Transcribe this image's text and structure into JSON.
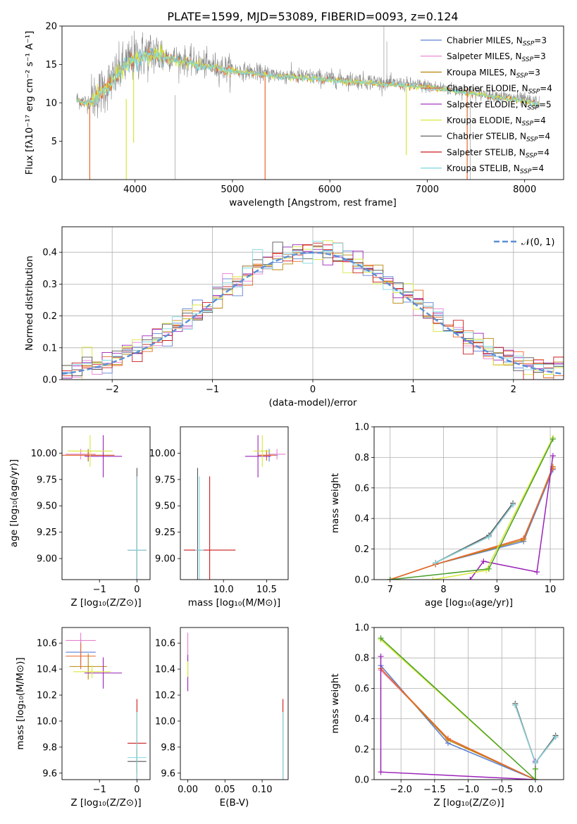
{
  "title": "PLATE=1599, MJD=53089, FIBERID=0093, z=0.124",
  "colors": {
    "Chabrier MILES": "#5b7fd6",
    "Salpeter MILES": "#e87fcf",
    "Kroupa MILES": "#b8860b",
    "Chabrier ELODIE": "#e8692a",
    "Salpeter ELODIE": "#9b22b8",
    "Kroupa ELODIE": "#d8e83a",
    "Chabrier STELIB": "#555555",
    "Salpeter STELIB": "#cc1a1a",
    "Kroupa STELIB": "#7fd8e0",
    "data": "#8a8a8a",
    "green": "#4aa02c",
    "ref": "#5b8fd6"
  },
  "chart_data": [
    {
      "type": "line",
      "title": "PLATE=1599, MJD=53089, FIBERID=0093, z=0.124",
      "xlabel": "wavelength [Angstrom, rest frame]",
      "ylabel": "Flux [fλ10⁻¹⁷ erg cm⁻² s⁻¹ A⁻¹]",
      "xlim": [
        3250,
        8400
      ],
      "ylim": [
        0,
        20
      ],
      "xticks": [
        "4000",
        "5000",
        "6000",
        "7000",
        "8000"
      ],
      "yticks": [
        "0",
        "5",
        "10",
        "15",
        "20"
      ],
      "legend_placement": "upper right",
      "legend": [
        {
          "name": "Chabrier MILES, N",
          "sub": "SSP",
          "suffix": "=3"
        },
        {
          "name": "Salpeter MILES, N",
          "sub": "SSP",
          "suffix": "=3"
        },
        {
          "name": "Kroupa MILES, N",
          "sub": "SSP",
          "suffix": "=3"
        },
        {
          "name": "Chabrier ELODIE, N",
          "sub": "SSP",
          "suffix": "=4"
        },
        {
          "name": "Salpeter ELODIE, N",
          "sub": "SSP",
          "suffix": "=5"
        },
        {
          "name": "Kroupa ELODIE, N",
          "sub": "SSP",
          "suffix": "=4"
        },
        {
          "name": "Chabrier STELIB, N",
          "sub": "SSP",
          "suffix": "=4"
        },
        {
          "name": "Salpeter STELIB, N",
          "sub": "SSP",
          "suffix": "=4"
        },
        {
          "name": "Kroupa STELIB, N",
          "sub": "SSP",
          "suffix": "=4"
        }
      ],
      "continuum": {
        "x": [
          3400,
          3500,
          3700,
          3800,
          3900,
          4000,
          4200,
          4500,
          5000,
          5500,
          6000,
          6500,
          7000,
          7500,
          8000,
          8150
        ],
        "y": [
          10.5,
          10,
          12,
          13.5,
          15,
          16,
          16.5,
          15.5,
          14.3,
          13.6,
          13.2,
          12.7,
          12.2,
          11.3,
          10.4,
          10
        ]
      }
    },
    {
      "type": "bar",
      "xlabel": "(data-model)/error",
      "ylabel": "Normed distribution",
      "xlim": [
        -2.5,
        2.5
      ],
      "ylim": [
        0,
        0.48
      ],
      "xticks": [
        "−2",
        "−1",
        "0",
        "1",
        "2"
      ],
      "yticks": [
        "0.0",
        "0.1",
        "0.2",
        "0.3",
        "0.4"
      ],
      "bin_width": 0.1,
      "legend": [
        "𝒩(0, 1)"
      ],
      "reference_curve": "normal distribution, mean 0, sigma 1"
    },
    {
      "type": "scatter",
      "xlabel": "Z [log₁₀(Z/Z⊙)]",
      "ylabel": "age  [log₁₀(age/yr)]",
      "xlim": [
        -2.0,
        0.35
      ],
      "ylim": [
        8.8,
        10.25
      ],
      "xticks": [
        "−1",
        "0"
      ],
      "yticks": [
        "9.00",
        "9.25",
        "9.50",
        "9.75",
        "10.00"
      ],
      "points": [
        {
          "model": "Chabrier MILES",
          "x": -1.3,
          "y": 9.98,
          "xerr": 0.7,
          "yerr": 0.06
        },
        {
          "model": "Salpeter MILES",
          "x": -1.5,
          "y": 9.99,
          "xerr": 0.4,
          "yerr": 0.05
        },
        {
          "model": "Kroupa MILES",
          "x": -1.3,
          "y": 9.98,
          "xerr": 0.6,
          "yerr": 0.05
        },
        {
          "model": "Chabrier ELODIE",
          "x": -1.3,
          "y": 9.98,
          "xerr": 0.7,
          "yerr": 0.05
        },
        {
          "model": "Salpeter ELODIE",
          "x": -0.9,
          "y": 9.97,
          "xerr": 0.5,
          "yerr": 0.2
        },
        {
          "model": "Kroupa ELODIE",
          "x": -1.25,
          "y": 10.02,
          "xerr": 0.6,
          "yerr": 0.15
        },
        {
          "model": "Chabrier STELIB",
          "x": 0.0,
          "y": 9.08,
          "xerr": 0.25,
          "yerr": 0.78
        },
        {
          "model": "Salpeter STELIB",
          "x": 0.0,
          "y": 9.08,
          "xerr": 0.25,
          "yerr": 0.7
        },
        {
          "model": "Kroupa STELIB",
          "x": 0.0,
          "y": 9.08,
          "xerr": 0.25,
          "yerr": 0.7
        }
      ]
    },
    {
      "type": "scatter",
      "xlabel": "mass [log₁₀(M/M⊙)]",
      "xlim": [
        9.5,
        10.75
      ],
      "ylim": [
        8.8,
        10.25
      ],
      "xticks": [
        "10.0",
        "10.5"
      ],
      "yticks": [
        "9.00",
        "9.25",
        "9.50",
        "9.75",
        "10.00"
      ],
      "points": [
        {
          "model": "Chabrier MILES",
          "x": 10.53,
          "y": 9.98,
          "xerr": 0.1,
          "yerr": 0.06
        },
        {
          "model": "Salpeter MILES",
          "x": 10.62,
          "y": 9.99,
          "xerr": 0.1,
          "yerr": 0.05
        },
        {
          "model": "Kroupa MILES",
          "x": 10.5,
          "y": 9.98,
          "xerr": 0.1,
          "yerr": 0.05
        },
        {
          "model": "Chabrier ELODIE",
          "x": 10.5,
          "y": 9.98,
          "xerr": 0.1,
          "yerr": 0.05
        },
        {
          "model": "Salpeter ELODIE",
          "x": 10.4,
          "y": 9.97,
          "xerr": 0.15,
          "yerr": 0.2
        },
        {
          "model": "Kroupa ELODIE",
          "x": 10.45,
          "y": 10.02,
          "xerr": 0.1,
          "yerr": 0.15
        },
        {
          "model": "Chabrier STELIB",
          "x": 9.7,
          "y": 9.08,
          "xerr": 0.05,
          "yerr": 0.78
        },
        {
          "model": "Salpeter STELIB",
          "x": 9.84,
          "y": 9.08,
          "xerr": 0.3,
          "yerr": 0.7
        },
        {
          "model": "Kroupa STELIB",
          "x": 9.72,
          "y": 9.08,
          "xerr": 0.05,
          "yerr": 0.7
        }
      ]
    },
    {
      "type": "line",
      "xlabel": "age  [log₁₀(age/yr)]",
      "ylabel": "mass weight",
      "xlim": [
        6.7,
        10.25
      ],
      "ylim": [
        0,
        1.0
      ],
      "xticks": [
        "7",
        "8",
        "9",
        "10"
      ],
      "yticks": [
        "0.0",
        "0.2",
        "0.4",
        "0.6",
        "0.8",
        "1.0"
      ],
      "series": [
        {
          "model": "Chabrier MILES",
          "x": [
            7.0,
            7.85,
            9.5,
            10.05
          ],
          "y": [
            0.0,
            0.1,
            0.25,
            0.72
          ]
        },
        {
          "model": "Salpeter MILES",
          "x": [
            7.0,
            7.85,
            9.5,
            10.05
          ],
          "y": [
            0.0,
            0.1,
            0.27,
            0.73
          ]
        },
        {
          "model": "Kroupa MILES",
          "x": [
            7.0,
            7.85,
            9.5,
            10.05
          ],
          "y": [
            0.0,
            0.1,
            0.26,
            0.74
          ]
        },
        {
          "model": "Chabrier ELODIE",
          "x": [
            7.0,
            7.85,
            9.5,
            10.05
          ],
          "y": [
            0.0,
            0.1,
            0.27,
            0.73
          ]
        },
        {
          "model": "Salpeter ELODIE",
          "x": [
            8.5,
            8.75,
            9.75,
            10.05
          ],
          "y": [
            0.0,
            0.12,
            0.05,
            0.81
          ]
        },
        {
          "model": "Kroupa ELODIE",
          "x": [
            7.8,
            8.8,
            10.05
          ],
          "y": [
            0.0,
            0.06,
            0.93
          ]
        },
        {
          "model": "Chabrier STELIB",
          "x": [
            7.85,
            8.85,
            9.3
          ],
          "y": [
            0.11,
            0.29,
            0.5
          ]
        },
        {
          "model": "Salpeter STELIB",
          "x": [
            7.85,
            8.85,
            9.3
          ],
          "y": [
            0.11,
            0.28,
            0.49
          ]
        },
        {
          "model": "Kroupa STELIB",
          "x": [
            7.85,
            8.85,
            9.3
          ],
          "y": [
            0.11,
            0.28,
            0.49
          ]
        },
        {
          "model": "green",
          "x": [
            7.0,
            8.85,
            10.05
          ],
          "y": [
            0.0,
            0.07,
            0.92
          ]
        }
      ]
    },
    {
      "type": "scatter",
      "xlabel": "Z [log₁₀(Z/Z⊙)]",
      "ylabel": "mass [log₁₀(M/M⊙)]",
      "xlim": [
        -2.0,
        0.35
      ],
      "ylim": [
        9.55,
        10.72
      ],
      "xticks": [
        "−1",
        "0"
      ],
      "yticks": [
        "9.6",
        "9.8",
        "10.0",
        "10.2",
        "10.4",
        "10.6"
      ],
      "points": [
        {
          "model": "Chabrier MILES",
          "x": -1.5,
          "y": 10.53,
          "xerr": 0.4,
          "yerr": 0.1
        },
        {
          "model": "Salpeter MILES",
          "x": -1.5,
          "y": 10.62,
          "xerr": 0.4,
          "yerr": 0.06
        },
        {
          "model": "Kroupa MILES",
          "x": -1.3,
          "y": 10.42,
          "xerr": 0.5,
          "yerr": 0.1
        },
        {
          "model": "Chabrier ELODIE",
          "x": -1.5,
          "y": 10.5,
          "xerr": 0.4,
          "yerr": 0.1
        },
        {
          "model": "Salpeter ELODIE",
          "x": -0.9,
          "y": 10.37,
          "xerr": 0.5,
          "yerr": 0.12
        },
        {
          "model": "Kroupa ELODIE",
          "x": -1.2,
          "y": 10.38,
          "xerr": 0.5,
          "yerr": 0.05
        },
        {
          "model": "Chabrier STELIB",
          "x": 0.0,
          "y": 9.69,
          "xerr": 0.25,
          "yerr": 0.09
        },
        {
          "model": "Salpeter STELIB",
          "x": 0.0,
          "y": 9.83,
          "xerr": 0.25,
          "yerr": 0.34
        },
        {
          "model": "Kroupa STELIB",
          "x": 0.0,
          "y": 9.72,
          "xerr": 0.25,
          "yerr": 0.35
        }
      ]
    },
    {
      "type": "scatter",
      "xlabel": "E(B-V)",
      "xlim": [
        -0.01,
        0.135
      ],
      "ylim": [
        9.55,
        10.72
      ],
      "xticks": [
        "0.00",
        "0.05",
        "0.10"
      ],
      "yticks": [
        "9.6",
        "9.8",
        "10.0",
        "10.2",
        "10.4",
        "10.6"
      ],
      "points": [
        {
          "model": "Salpeter MILES",
          "x": 0.0,
          "y": 10.58,
          "xerr": 0.0,
          "yerr": 0.1
        },
        {
          "model": "Salpeter ELODIE",
          "x": 0.0,
          "y": 10.37,
          "xerr": 0.0,
          "yerr": 0.14
        },
        {
          "model": "Kroupa ELODIE",
          "x": 0.0,
          "y": 10.4,
          "xerr": 0.0,
          "yerr": 0.06
        },
        {
          "model": "Salpeter STELIB",
          "x": 0.128,
          "y": 9.83,
          "xerr": 0.0,
          "yerr": 0.34
        },
        {
          "model": "Kroupa STELIB",
          "x": 0.128,
          "y": 9.72,
          "xerr": 0.0,
          "yerr": 0.35
        }
      ]
    },
    {
      "type": "line",
      "xlabel": "Z [log₁₀(Z/Z⊙)]",
      "ylabel": "mass weight",
      "xlim": [
        -2.4,
        0.42
      ],
      "ylim": [
        0,
        1.0
      ],
      "xticks": [
        "−2.0",
        "−1.5",
        "−1.0",
        "−0.5",
        "0.0"
      ],
      "yticks": [
        "0.0",
        "0.2",
        "0.4",
        "0.6",
        "0.8",
        "1.0"
      ],
      "series": [
        {
          "model": "Chabrier MILES",
          "x": [
            -2.3,
            -1.3,
            0.0
          ],
          "y": [
            0.75,
            0.24,
            0.0
          ]
        },
        {
          "model": "Salpeter MILES",
          "x": [
            -2.3,
            -1.3,
            0.0
          ],
          "y": [
            0.72,
            0.27,
            0.0
          ]
        },
        {
          "model": "Kroupa MILES",
          "x": [
            -2.3,
            -1.3,
            0.0
          ],
          "y": [
            0.73,
            0.26,
            0.0
          ]
        },
        {
          "model": "Chabrier ELODIE",
          "x": [
            -2.3,
            -1.3,
            0.0
          ],
          "y": [
            0.73,
            0.27,
            0.0
          ]
        },
        {
          "model": "Salpeter ELODIE",
          "x": [
            -2.3,
            -2.3,
            0.0,
            0.0
          ],
          "y": [
            0.81,
            0.05,
            0.0,
            0.12
          ]
        },
        {
          "model": "Kroupa ELODIE",
          "x": [
            -2.3,
            0.0,
            0.0
          ],
          "y": [
            0.92,
            0.0,
            0.07
          ]
        },
        {
          "model": "green",
          "x": [
            -2.3,
            0.0,
            0.0
          ],
          "y": [
            0.93,
            0.0,
            0.07
          ]
        },
        {
          "model": "Chabrier STELIB",
          "x": [
            -0.3,
            0.0,
            0.3
          ],
          "y": [
            0.5,
            0.11,
            0.29
          ]
        },
        {
          "model": "Salpeter STELIB",
          "x": [
            -0.3,
            0.0,
            0.3
          ],
          "y": [
            0.49,
            0.11,
            0.28
          ]
        },
        {
          "model": "Kroupa STELIB",
          "x": [
            -0.3,
            0.0,
            0.3
          ],
          "y": [
            0.49,
            0.11,
            0.28
          ]
        }
      ]
    }
  ]
}
